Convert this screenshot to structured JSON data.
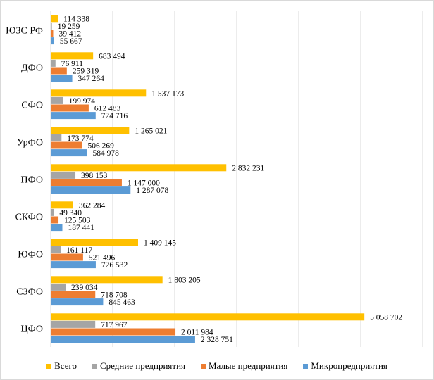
{
  "chart_data": {
    "type": "bar",
    "orientation": "horizontal",
    "title": "",
    "xlabel": "",
    "ylabel": "",
    "xlim": [
      0,
      6000000
    ],
    "grid": true,
    "legend_position": "bottom",
    "categories": [
      "ЮЗС РФ",
      "ДФО",
      "СФО",
      "УрФО",
      "ПФО",
      "СКФО",
      "ЮФО",
      "СЗФО",
      "ЦФО"
    ],
    "series": [
      {
        "name": "Всего",
        "color": "#ffc000",
        "values": [
          114338,
          683494,
          1537173,
          1265021,
          2832231,
          362284,
          1409145,
          1803205,
          5058702
        ],
        "labels": [
          "114 338",
          "683 494",
          "1 537 173",
          "1 265 021",
          "2 832 231",
          "362 284",
          "1 409 145",
          "1 803 205",
          "5 058 702"
        ]
      },
      {
        "name": "Средние предприятия",
        "color": "#a5a5a5",
        "values": [
          19259,
          76911,
          199974,
          173774,
          398153,
          49340,
          161117,
          239034,
          717967
        ],
        "labels": [
          "19 259",
          "76 911",
          "199 974",
          "173 774",
          "398 153",
          "49 340",
          "161 117",
          "239 034",
          "717 967"
        ]
      },
      {
        "name": "Малые предприятия",
        "color": "#ed7d31",
        "values": [
          39412,
          259319,
          612483,
          506269,
          1147000,
          125503,
          521496,
          718708,
          2011984
        ],
        "labels": [
          "39 412",
          "259 319",
          "612 483",
          "506 269",
          "1 147 000",
          "125 503",
          "521 496",
          "718 708",
          "2 011 984"
        ]
      },
      {
        "name": "Микропредприятия",
        "color": "#5b9bd5",
        "values": [
          55667,
          347264,
          724716,
          584978,
          1287078,
          187441,
          726532,
          845463,
          2328751
        ],
        "labels": [
          "55 667",
          "347 264",
          "724 716",
          "584 978",
          "1 287 078",
          "187 441",
          "726 532",
          "845 463",
          "2 328 751"
        ]
      }
    ]
  }
}
